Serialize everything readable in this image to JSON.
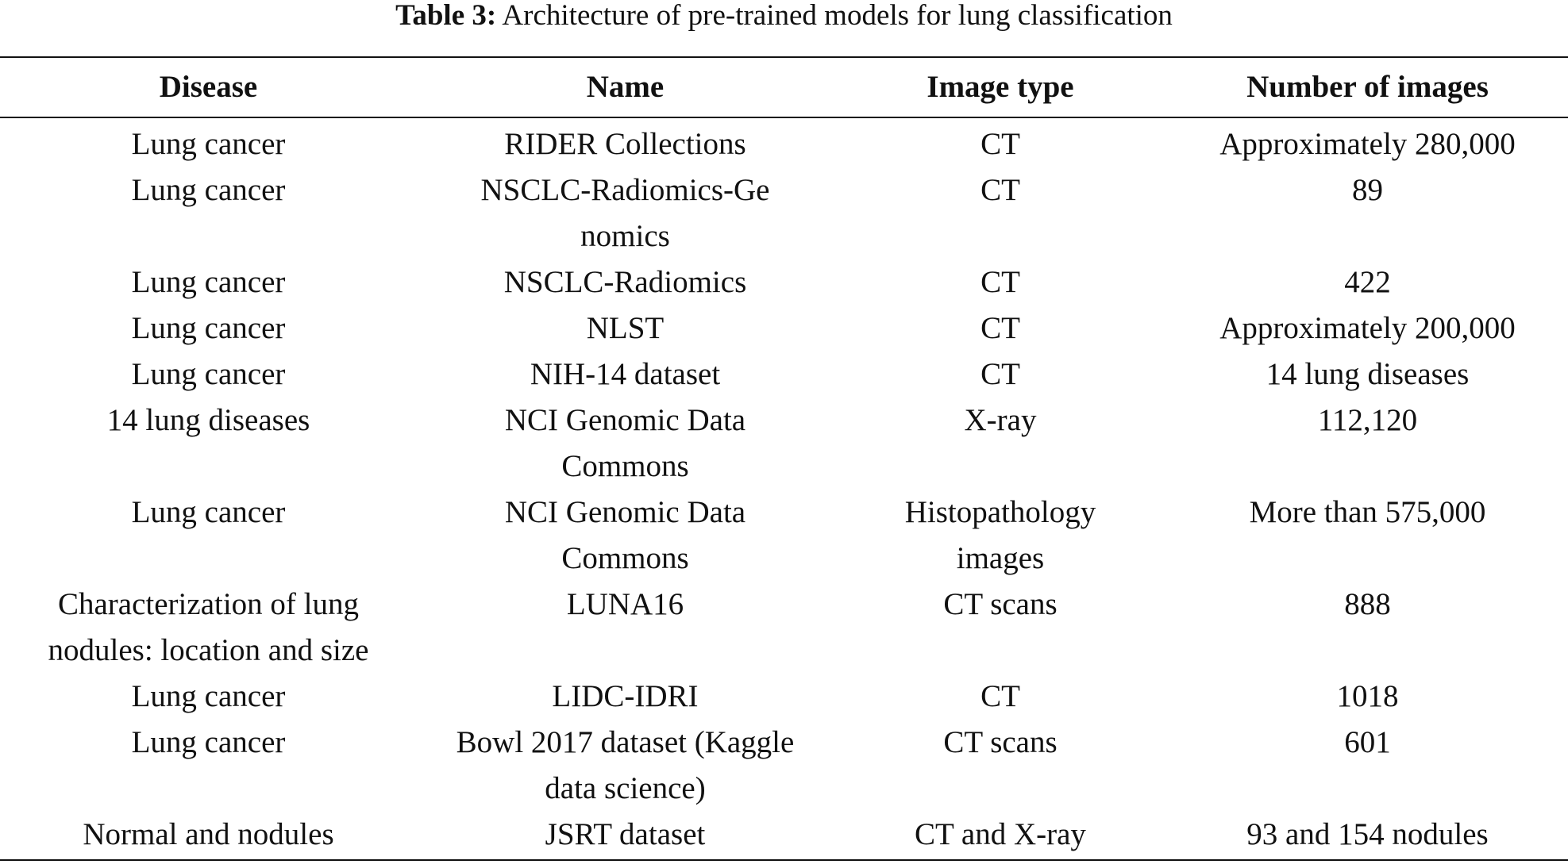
{
  "caption": {
    "label": "Table 3:",
    "text": "Architecture of pre-trained models for lung classification"
  },
  "table": {
    "headers": [
      "Disease",
      "Name",
      "Image type",
      "Number of images"
    ],
    "rows": [
      {
        "disease": "Lung cancer",
        "name": "RIDER Collections",
        "image_type": "CT",
        "count": "Approximately 280,000"
      },
      {
        "disease": "Lung cancer",
        "name": "NSCLC-Radiomics-Genomics",
        "image_type": "CT",
        "count": "89"
      },
      {
        "disease": "Lung cancer",
        "name": "NSCLC-Radiomics",
        "image_type": "CT",
        "count": "422"
      },
      {
        "disease": "Lung cancer",
        "name": "NLST",
        "image_type": "CT",
        "count": "Approximately 200,000"
      },
      {
        "disease": "Lung cancer",
        "name": "NIH-14 dataset",
        "image_type": "CT",
        "count": "14 lung diseases"
      },
      {
        "disease": "14 lung diseases",
        "name": "NCI Genomic Data Commons",
        "image_type": "X-ray",
        "count": "112,120"
      },
      {
        "disease": "Lung cancer",
        "name": "NCI Genomic Data Commons",
        "image_type": "Histopathology images",
        "count": "More than 575,000"
      },
      {
        "disease": "Characterization of lung nodules: location and size",
        "name": "LUNA16",
        "image_type": "CT scans",
        "count": "888"
      },
      {
        "disease": "Lung cancer",
        "name": "LIDC-IDRI",
        "image_type": "CT",
        "count": "1018"
      },
      {
        "disease": "Lung cancer",
        "name": "Bowl 2017 dataset (Kaggle data science)",
        "image_type": "CT scans",
        "count": "601"
      },
      {
        "disease": "Normal and nodules",
        "name": "JSRT dataset",
        "image_type": "CT and X-ray",
        "count": "93 and 154 nodules"
      }
    ]
  }
}
